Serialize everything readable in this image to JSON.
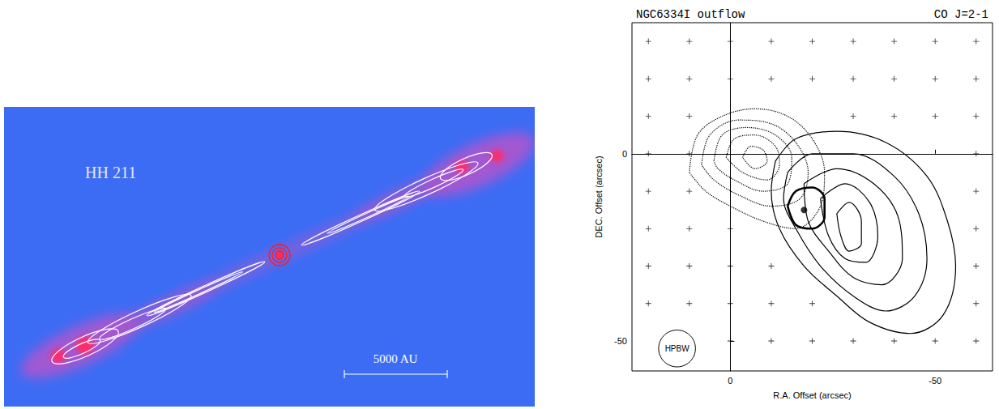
{
  "image_panel": {
    "title": "HH 211",
    "scale_bar_label": "5000 AU"
  },
  "chart_data": {
    "type": "contour",
    "title": "NGC6334I outflow",
    "subtitle": "CO J=2-1",
    "x_label": "R.A. Offset (arcsec)",
    "y_label": "DEC. Offset (arcsec)",
    "xlim": [
      24,
      -64
    ],
    "xticks": [
      0,
      -50
    ],
    "ylim": [
      -58,
      35
    ],
    "yticks": [
      -50,
      0
    ],
    "grid": false,
    "series": [
      {
        "line_style": "dotted",
        "color": "#000000",
        "contours": [
          [
            [
              10,
              -5
            ],
            [
              8,
              5
            ],
            [
              2,
              10
            ],
            [
              -6,
              12
            ],
            [
              -14,
              10
            ],
            [
              -20,
              4
            ],
            [
              -23,
              -5
            ],
            [
              -22,
              -14
            ],
            [
              -16,
              -20
            ],
            [
              -8,
              -18
            ],
            [
              0,
              -14
            ],
            [
              6,
              -10
            ],
            [
              10,
              -5
            ]
          ],
          [
            [
              7,
              -3
            ],
            [
              5,
              5
            ],
            [
              -2,
              9
            ],
            [
              -10,
              8
            ],
            [
              -16,
              3
            ],
            [
              -19,
              -5
            ],
            [
              -17,
              -12
            ],
            [
              -10,
              -14
            ],
            [
              -2,
              -11
            ],
            [
              4,
              -7
            ],
            [
              7,
              -3
            ]
          ],
          [
            [
              4,
              -2
            ],
            [
              2,
              5
            ],
            [
              -4,
              7
            ],
            [
              -11,
              5
            ],
            [
              -15,
              -1
            ],
            [
              -14,
              -8
            ],
            [
              -8,
              -10
            ],
            [
              -1,
              -7
            ],
            [
              3,
              -4
            ],
            [
              4,
              -2
            ]
          ],
          [
            [
              1,
              -1
            ],
            [
              -1,
              4
            ],
            [
              -6,
              5
            ],
            [
              -11,
              2
            ],
            [
              -12,
              -3
            ],
            [
              -9,
              -7
            ],
            [
              -3,
              -5
            ],
            [
              1,
              -1
            ]
          ],
          [
            [
              -3,
              -1
            ],
            [
              -5,
              2
            ],
            [
              -8,
              1
            ],
            [
              -9,
              -2
            ],
            [
              -6,
              -4
            ],
            [
              -3,
              -1
            ]
          ]
        ]
      },
      {
        "line_style": "solid",
        "color": "#000000",
        "contours": [
          [
            [
              -11,
              -2
            ],
            [
              -16,
              4
            ],
            [
              -26,
              6
            ],
            [
              -38,
              3
            ],
            [
              -48,
              -6
            ],
            [
              -53,
              -18
            ],
            [
              -55,
              -30
            ],
            [
              -52,
              -43
            ],
            [
              -44,
              -48
            ],
            [
              -34,
              -45
            ],
            [
              -26,
              -38
            ],
            [
              -18,
              -30
            ],
            [
              -12,
              -20
            ],
            [
              -10,
              -10
            ],
            [
              -11,
              -2
            ]
          ],
          [
            [
              -14,
              -5
            ],
            [
              -20,
              0
            ],
            [
              -30,
              0
            ],
            [
              -40,
              -6
            ],
            [
              -46,
              -16
            ],
            [
              -48,
              -28
            ],
            [
              -45,
              -38
            ],
            [
              -38,
              -42
            ],
            [
              -30,
              -38
            ],
            [
              -22,
              -30
            ],
            [
              -16,
              -20
            ],
            [
              -13,
              -12
            ],
            [
              -14,
              -5
            ]
          ],
          [
            [
              -18,
              -8
            ],
            [
              -26,
              -4
            ],
            [
              -35,
              -8
            ],
            [
              -41,
              -17
            ],
            [
              -42,
              -28
            ],
            [
              -37,
              -35
            ],
            [
              -30,
              -33
            ],
            [
              -24,
              -26
            ],
            [
              -19,
              -18
            ],
            [
              -18,
              -8
            ]
          ],
          [
            [
              -22,
              -12
            ],
            [
              -28,
              -8
            ],
            [
              -34,
              -13
            ],
            [
              -36,
              -22
            ],
            [
              -33,
              -29
            ],
            [
              -28,
              -28
            ],
            [
              -24,
              -22
            ],
            [
              -22,
              -12
            ]
          ],
          [
            [
              -26,
              -16
            ],
            [
              -29,
              -13
            ],
            [
              -32,
              -18
            ],
            [
              -32,
              -24
            ],
            [
              -29,
              -26
            ],
            [
              -27,
              -22
            ],
            [
              -26,
              -16
            ]
          ]
        ]
      },
      {
        "line_style": "bold",
        "color": "#000000",
        "contours": [
          [
            [
              -14,
              -14
            ],
            [
              -16,
              -10
            ],
            [
              -20,
              -9
            ],
            [
              -23,
              -12
            ],
            [
              -23,
              -17
            ],
            [
              -20,
              -20
            ],
            [
              -16,
              -19
            ],
            [
              -14,
              -14
            ]
          ]
        ]
      }
    ],
    "map_points": {
      "marker": "plus",
      "color": "#000000",
      "points": [
        [
          20,
          30
        ],
        [
          10,
          30
        ],
        [
          0,
          30
        ],
        [
          -10,
          30
        ],
        [
          -20,
          30
        ],
        [
          -30,
          30
        ],
        [
          -40,
          30
        ],
        [
          -50,
          30
        ],
        [
          -60,
          30
        ],
        [
          20,
          20
        ],
        [
          10,
          20
        ],
        [
          0,
          20
        ],
        [
          -10,
          20
        ],
        [
          -20,
          20
        ],
        [
          -30,
          20
        ],
        [
          -40,
          20
        ],
        [
          -50,
          20
        ],
        [
          -60,
          20
        ],
        [
          20,
          10
        ],
        [
          10,
          10
        ],
        [
          -30,
          10
        ],
        [
          -40,
          10
        ],
        [
          -50,
          10
        ],
        [
          -60,
          10
        ],
        [
          20,
          0
        ],
        [
          10,
          0
        ],
        [
          -60,
          0
        ],
        [
          20,
          -10
        ],
        [
          10,
          -10
        ],
        [
          -60,
          -10
        ],
        [
          20,
          -20
        ],
        [
          10,
          -20
        ],
        [
          0,
          -20
        ],
        [
          -60,
          -20
        ],
        [
          20,
          -30
        ],
        [
          10,
          -30
        ],
        [
          0,
          -30
        ],
        [
          -10,
          -30
        ],
        [
          -60,
          -30
        ],
        [
          20,
          -40
        ],
        [
          10,
          -40
        ],
        [
          0,
          -40
        ],
        [
          -10,
          -40
        ],
        [
          -20,
          -40
        ],
        [
          -60,
          -40
        ],
        [
          0,
          -50
        ],
        [
          -10,
          -50
        ],
        [
          -20,
          -50
        ],
        [
          -30,
          -50
        ],
        [
          -40,
          -50
        ],
        [
          -50,
          -50
        ],
        [
          -60,
          -50
        ]
      ]
    },
    "peak": {
      "marker": "circle",
      "color": "#000000",
      "points": [
        [
          -18,
          -15
        ]
      ]
    },
    "beam": {
      "label": "HPBW",
      "x": 13,
      "y": -52,
      "diameter": 9
    }
  }
}
